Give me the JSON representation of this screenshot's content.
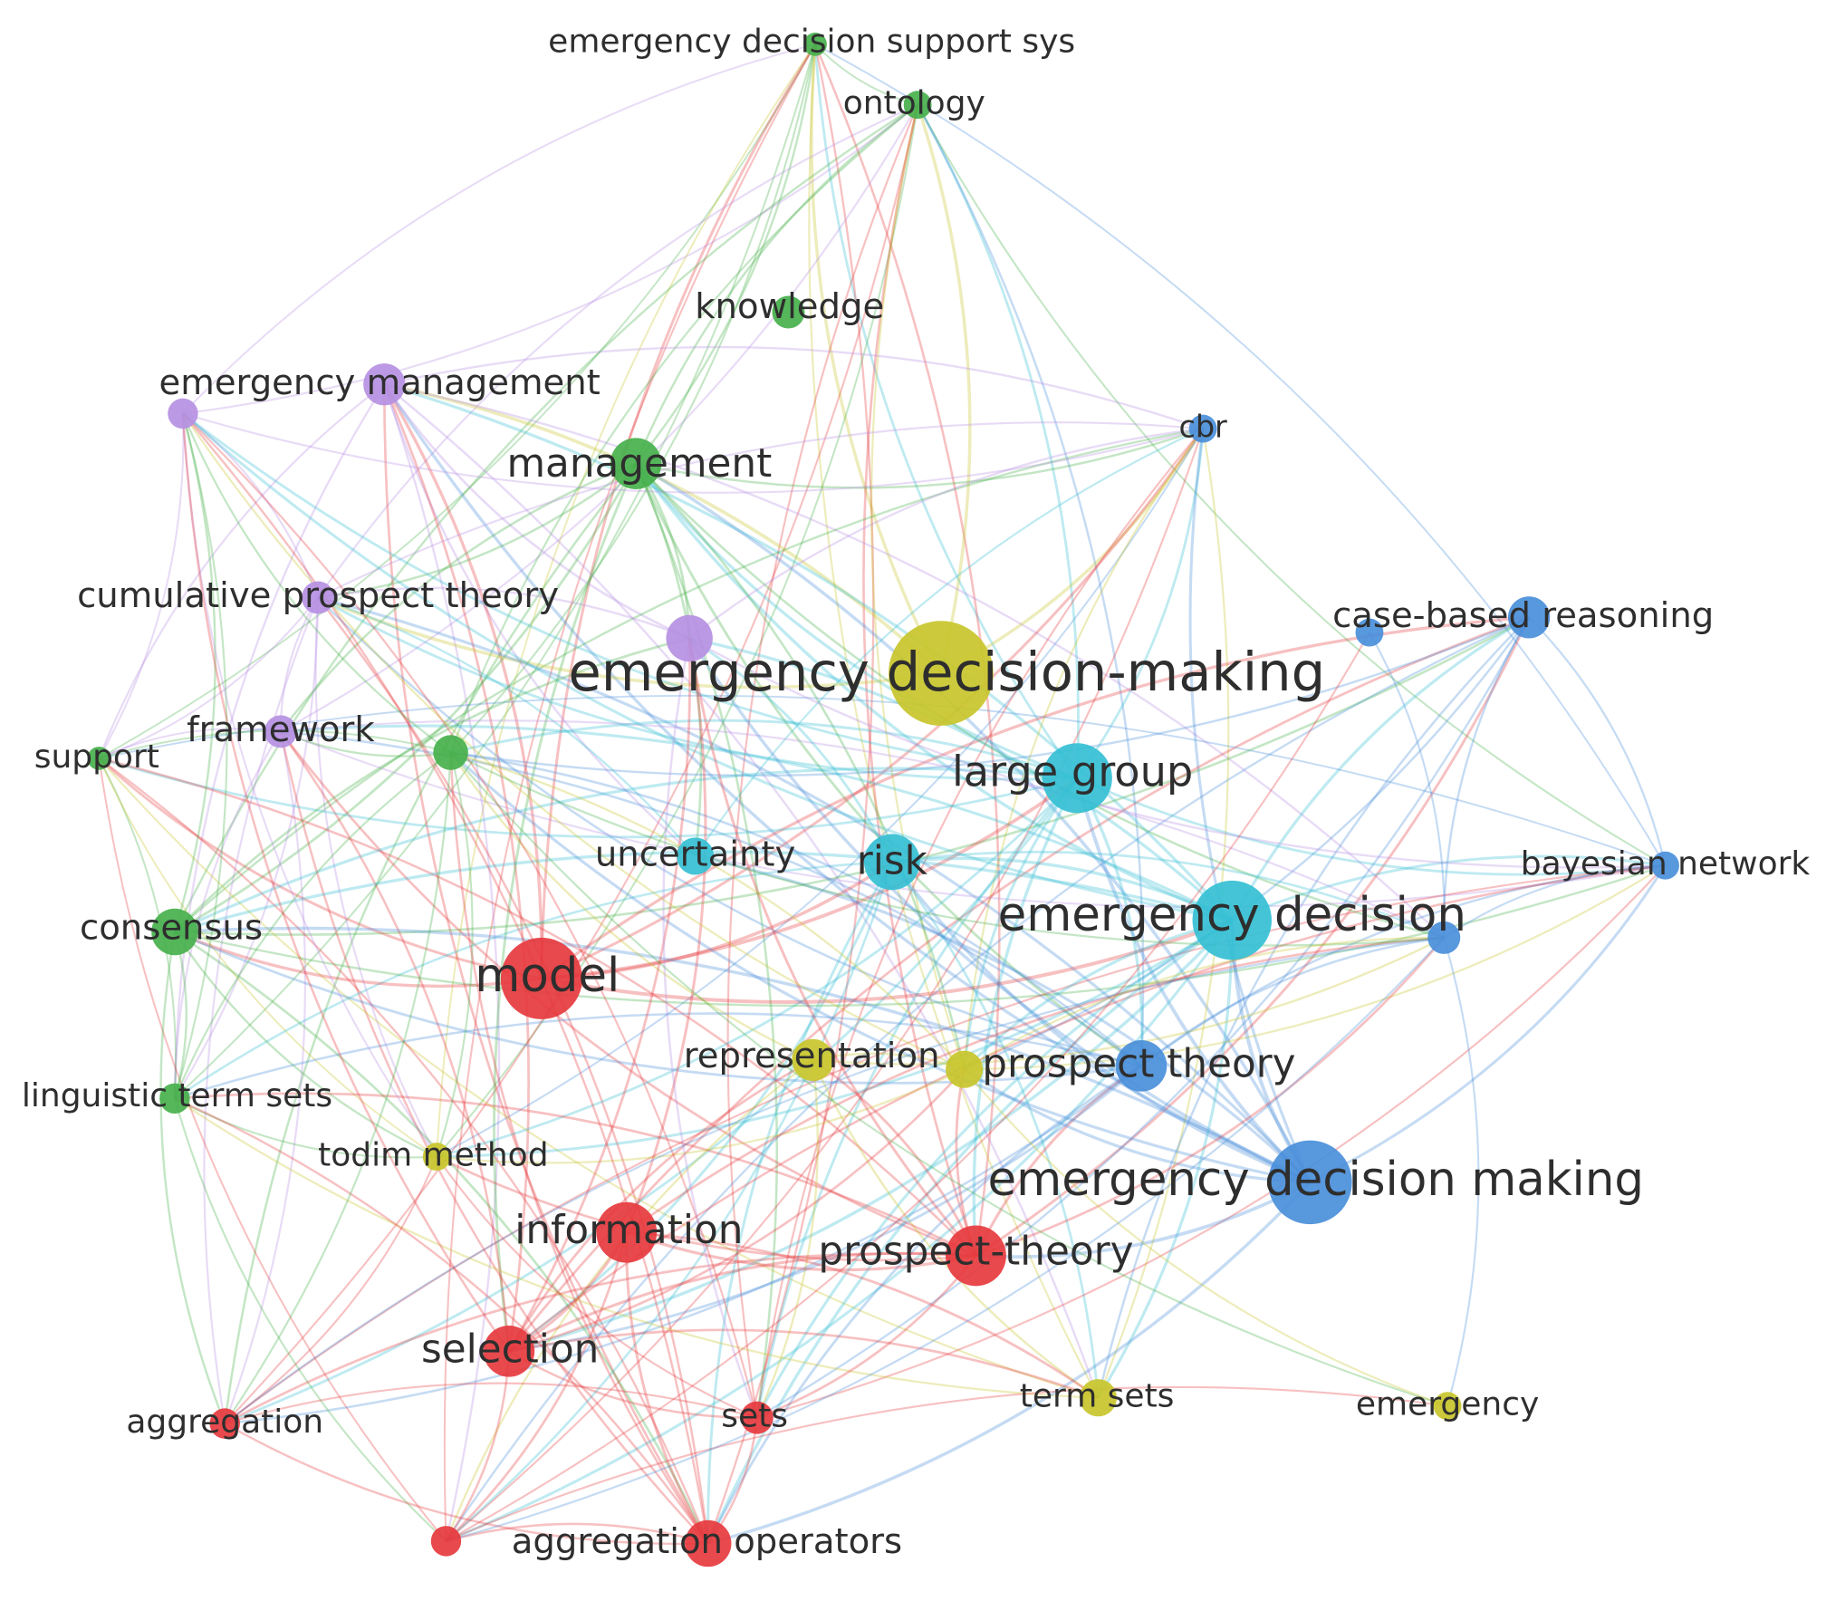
{
  "nodes": [
    {
      "label": "emergency decision support sys"
    },
    {
      "label": "ontology"
    },
    {
      "label": "knowledge"
    },
    {
      "label": "emergency management"
    },
    {
      "label": "management"
    },
    {
      "label": "cbr"
    },
    {
      "label": "cumulative prospect theory"
    },
    {
      "label": "emergency decision-making"
    },
    {
      "label": "case-based reasoning"
    },
    {
      "label": "framework"
    },
    {
      "label": "support"
    },
    {
      "label": "large group"
    },
    {
      "label": "uncertainty"
    },
    {
      "label": "risk"
    },
    {
      "label": "bayesian network"
    },
    {
      "label": "emergency decision"
    },
    {
      "label": "consensus"
    },
    {
      "label": "model"
    },
    {
      "label": "representation"
    },
    {
      "label": "prospect theory"
    },
    {
      "label": "linguistic term sets"
    },
    {
      "label": "todim method"
    },
    {
      "label": "emergency decision making"
    },
    {
      "label": "information"
    },
    {
      "label": "prospect-theory"
    },
    {
      "label": "selection"
    },
    {
      "label": "sets"
    },
    {
      "label": "term sets"
    },
    {
      "label": "emergency"
    },
    {
      "label": "aggregation"
    },
    {
      "label": "aggregation operators"
    }
  ]
}
